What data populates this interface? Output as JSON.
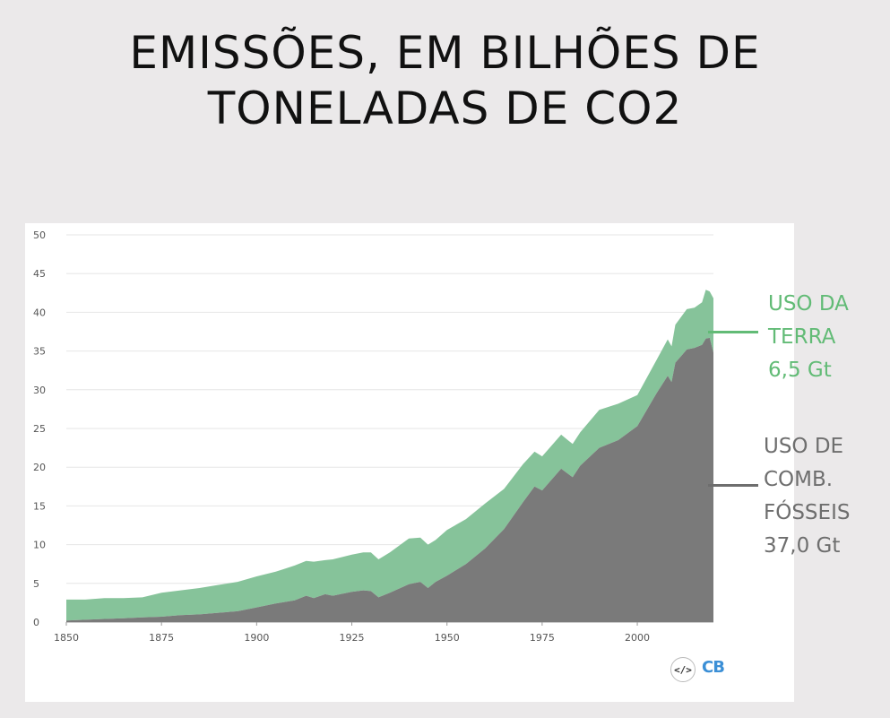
{
  "title": {
    "line1": "EMISSÕES, EM BILHÕES DE",
    "line2": "TONELADAS DE CO2"
  },
  "legend": {
    "land_use": {
      "lines": [
        "USO DA",
        "TERRA",
        "6,5 Gt"
      ],
      "color": "#62bb76"
    },
    "fossil": {
      "lines": [
        "USO DE",
        "COMB.",
        "FÓSSEIS",
        "37,0 Gt"
      ],
      "color": "#6e6e6e"
    }
  },
  "footer": {
    "embed_icon": "</>",
    "logo": "CB"
  },
  "chart_data": {
    "type": "area",
    "stacked": true,
    "title": "EMISSÕES, EM BILHÕES DE TONELADAS DE CO2",
    "xlim": [
      1850,
      2020
    ],
    "ylim": [
      0,
      50
    ],
    "x_ticks": [
      1850,
      1875,
      1900,
      1925,
      1950,
      1975,
      2000
    ],
    "y_ticks": [
      0,
      5,
      10,
      15,
      20,
      25,
      30,
      35,
      40,
      45,
      50
    ],
    "grid": true,
    "x": [
      1850,
      1855,
      1860,
      1865,
      1870,
      1875,
      1880,
      1885,
      1890,
      1895,
      1900,
      1905,
      1910,
      1913,
      1915,
      1918,
      1920,
      1925,
      1928,
      1930,
      1932,
      1935,
      1940,
      1943,
      1945,
      1947,
      1950,
      1955,
      1960,
      1965,
      1970,
      1973,
      1975,
      1980,
      1983,
      1985,
      1990,
      1995,
      2000,
      2005,
      2008,
      2009,
      2010,
      2013,
      2015,
      2017,
      2018,
      2019,
      2020
    ],
    "series": [
      {
        "name": "USO DE COMB. FÓSSEIS",
        "color": "#7a7a7a",
        "values": [
          0.2,
          0.3,
          0.4,
          0.5,
          0.6,
          0.7,
          0.9,
          1.0,
          1.2,
          1.4,
          1.9,
          2.4,
          2.8,
          3.4,
          3.1,
          3.6,
          3.4,
          3.9,
          4.1,
          4.0,
          3.2,
          3.8,
          4.9,
          5.2,
          4.4,
          5.2,
          6.0,
          7.5,
          9.5,
          12.0,
          15.5,
          17.5,
          17.0,
          19.8,
          18.7,
          20.2,
          22.5,
          23.5,
          25.3,
          29.5,
          31.8,
          31.0,
          33.5,
          35.2,
          35.4,
          35.8,
          36.6,
          36.7,
          34.8
        ]
      },
      {
        "name": "USO DA TERRA",
        "color": "#86c39a",
        "values": [
          2.7,
          2.6,
          2.7,
          2.6,
          2.6,
          3.1,
          3.2,
          3.4,
          3.6,
          3.8,
          4.0,
          4.1,
          4.5,
          4.5,
          4.7,
          4.4,
          4.7,
          4.8,
          4.9,
          5.0,
          4.9,
          5.2,
          5.9,
          5.7,
          5.6,
          5.4,
          5.9,
          5.8,
          5.8,
          5.2,
          4.9,
          4.5,
          4.4,
          4.4,
          4.3,
          4.3,
          4.9,
          4.7,
          4.0,
          4.3,
          4.7,
          4.6,
          4.9,
          5.2,
          5.2,
          5.5,
          6.3,
          6.0,
          7.0
        ]
      }
    ]
  }
}
